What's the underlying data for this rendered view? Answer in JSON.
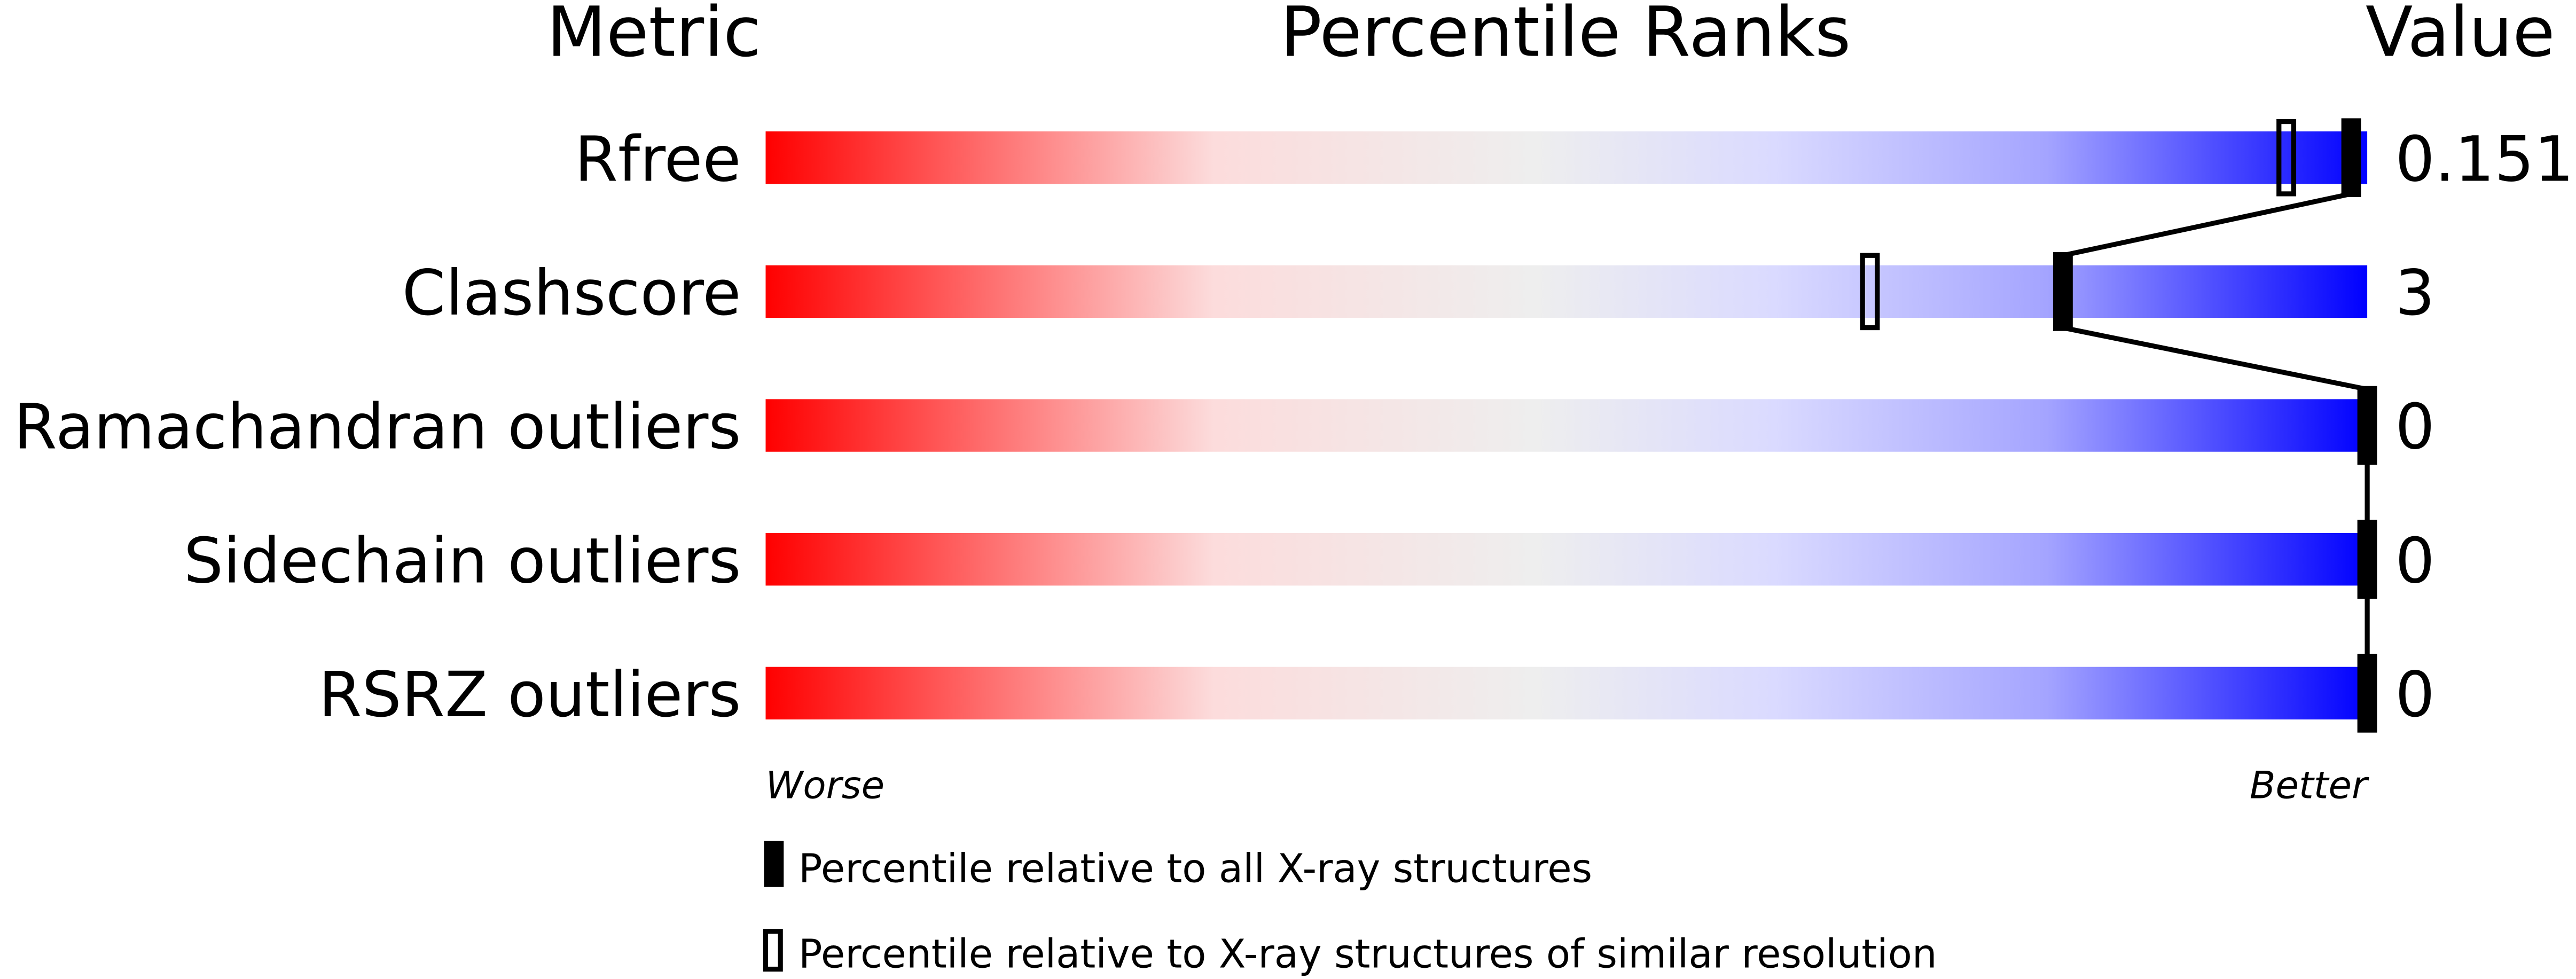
{
  "chart_data": {
    "type": "table",
    "headers": {
      "metric": "Metric",
      "ranks": "Percentile Ranks",
      "value": "Value"
    },
    "xlim": [
      0,
      100
    ],
    "axis_labels": {
      "worse": "Worse",
      "better": "Better"
    },
    "rows": [
      {
        "metric": "Rfree",
        "value": "0.151",
        "percentile_all": 99,
        "percentile_similar": 95
      },
      {
        "metric": "Clashscore",
        "value": "3",
        "percentile_all": 81,
        "percentile_similar": 69
      },
      {
        "metric": "Ramachandran outliers",
        "value": "0",
        "percentile_all": 100,
        "percentile_similar": null
      },
      {
        "metric": "Sidechain outliers",
        "value": "0",
        "percentile_all": 100,
        "percentile_similar": null
      },
      {
        "metric": "RSRZ outliers",
        "value": "0",
        "percentile_all": 100,
        "percentile_similar": null
      }
    ],
    "legend": [
      {
        "marker": "filled",
        "label": "Percentile relative to all X-ray structures"
      },
      {
        "marker": "hollow",
        "label": "Percentile relative to X-ray structures of similar resolution"
      }
    ],
    "colors": {
      "worse": "#ff0000",
      "mid": "#eeeeee",
      "better": "#0000ff",
      "marker": "#000000"
    }
  }
}
